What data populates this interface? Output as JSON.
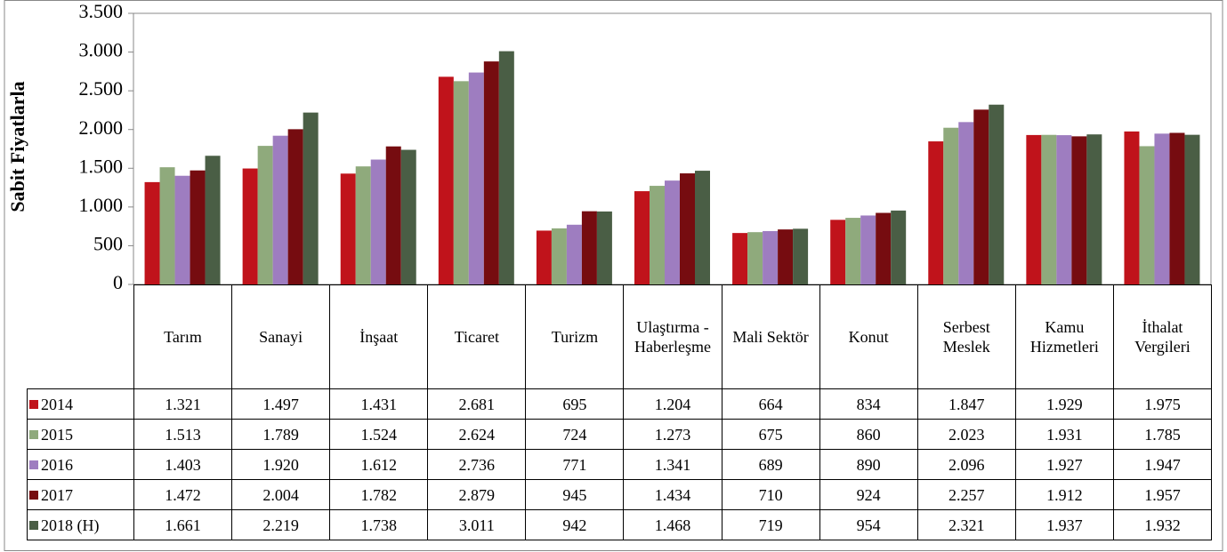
{
  "chart_data": {
    "type": "bar",
    "y_axis_label": "Sabit Fiyatlarla",
    "categories": [
      "Tarım",
      "Sanayi",
      "İnşaat",
      "Ticaret",
      "Turizm",
      "Ulaştırma - Haberleşme",
      "Mali Sektör",
      "Konut",
      "Serbest Meslek",
      "Kamu Hizmetleri",
      "İthalat Vergileri"
    ],
    "series": [
      {
        "name": "2014",
        "color": "#c0131b",
        "values": [
          1321,
          1497,
          1431,
          2681,
          695,
          1204,
          664,
          834,
          1847,
          1929,
          1975
        ],
        "value_labels": [
          "1.321",
          "1.497",
          "1.431",
          "2.681",
          "695",
          "1.204",
          "664",
          "834",
          "1.847",
          "1.929",
          "1.975"
        ]
      },
      {
        "name": "2015",
        "color": "#8faa7c",
        "values": [
          1513,
          1789,
          1524,
          2624,
          724,
          1273,
          675,
          860,
          2023,
          1931,
          1785
        ],
        "value_labels": [
          "1.513",
          "1.789",
          "1.524",
          "2.624",
          "724",
          "1.273",
          "675",
          "860",
          "2.023",
          "1.931",
          "1.785"
        ]
      },
      {
        "name": "2016",
        "color": "#9e7dc0",
        "values": [
          1403,
          1920,
          1612,
          2736,
          771,
          1341,
          689,
          890,
          2096,
          1927,
          1947
        ],
        "value_labels": [
          "1.403",
          "1.920",
          "1.612",
          "2.736",
          "771",
          "1.341",
          "689",
          "890",
          "2.096",
          "1.927",
          "1.947"
        ]
      },
      {
        "name": "2017",
        "color": "#760c10",
        "values": [
          1472,
          2004,
          1782,
          2879,
          945,
          1434,
          710,
          924,
          2257,
          1912,
          1957
        ],
        "value_labels": [
          "1.472",
          "2.004",
          "1.782",
          "2.879",
          "945",
          "1.434",
          "710",
          "924",
          "2.257",
          "1.912",
          "1.957"
        ]
      },
      {
        "name": "2018 (H)",
        "color": "#4a5e45",
        "values": [
          1661,
          2219,
          1738,
          3011,
          942,
          1468,
          719,
          954,
          2321,
          1937,
          1932
        ],
        "value_labels": [
          "1.661",
          "2.219",
          "1.738",
          "3.011",
          "942",
          "1.468",
          "719",
          "954",
          "2.321",
          "1.937",
          "1.932"
        ]
      }
    ],
    "ylim": [
      0,
      3500
    ],
    "yticks": [
      0,
      500,
      {
        "value": 1000,
        "label": "1.000"
      },
      {
        "value": 1500,
        "label": "1.500"
      },
      {
        "value": 2000,
        "label": "2.000"
      },
      {
        "value": 2500,
        "label": "2.500"
      },
      {
        "value": 3000,
        "label": "3.000"
      },
      {
        "value": 3500,
        "label": "3.500"
      }
    ]
  }
}
